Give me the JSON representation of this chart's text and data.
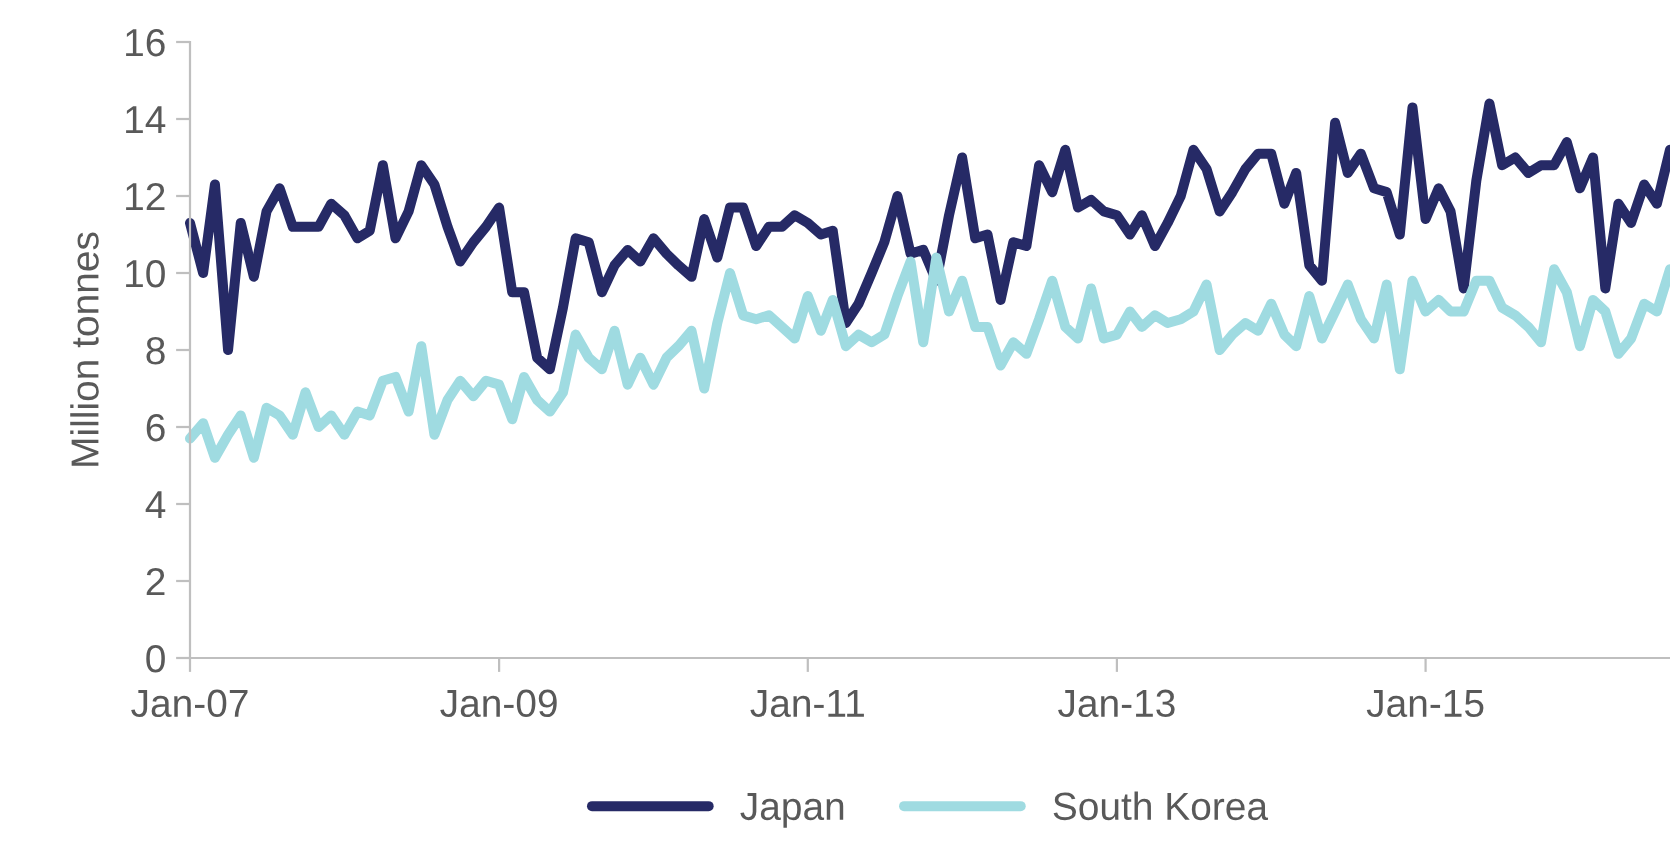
{
  "chart_data": {
    "type": "line",
    "ylabel": "Million tonnes",
    "x": [
      "2007-01",
      "2007-02",
      "2007-03",
      "2007-04",
      "2007-05",
      "2007-06",
      "2007-07",
      "2007-08",
      "2007-09",
      "2007-10",
      "2007-11",
      "2007-12",
      "2008-01",
      "2008-02",
      "2008-03",
      "2008-04",
      "2008-05",
      "2008-06",
      "2008-07",
      "2008-08",
      "2008-09",
      "2008-10",
      "2008-11",
      "2008-12",
      "2009-01",
      "2009-02",
      "2009-03",
      "2009-04",
      "2009-05",
      "2009-06",
      "2009-07",
      "2009-08",
      "2009-09",
      "2009-10",
      "2009-11",
      "2009-12",
      "2010-01",
      "2010-02",
      "2010-03",
      "2010-04",
      "2010-05",
      "2010-06",
      "2010-07",
      "2010-08",
      "2010-09",
      "2010-10",
      "2010-11",
      "2010-12",
      "2011-01",
      "2011-02",
      "2011-03",
      "2011-04",
      "2011-05",
      "2011-06",
      "2011-07",
      "2011-08",
      "2011-09",
      "2011-10",
      "2011-11",
      "2011-12",
      "2012-01",
      "2012-02",
      "2012-03",
      "2012-04",
      "2012-05",
      "2012-06",
      "2012-07",
      "2012-08",
      "2012-09",
      "2012-10",
      "2012-11",
      "2012-12",
      "2013-01",
      "2013-02",
      "2013-03",
      "2013-04",
      "2013-05",
      "2013-06",
      "2013-07",
      "2013-08",
      "2013-09",
      "2013-10",
      "2013-11",
      "2013-12",
      "2014-01",
      "2014-02",
      "2014-03",
      "2014-04",
      "2014-05",
      "2014-06",
      "2014-07",
      "2014-08",
      "2014-09",
      "2014-10",
      "2014-11",
      "2014-12",
      "2015-01",
      "2015-02",
      "2015-03",
      "2015-04",
      "2015-05",
      "2015-06",
      "2015-07",
      "2015-08",
      "2015-09",
      "2015-10",
      "2015-11",
      "2015-12",
      "2016-01",
      "2016-02",
      "2016-03",
      "2016-04",
      "2016-05",
      "2016-06",
      "2016-07",
      "2016-08"
    ],
    "series": [
      {
        "name": "Japan",
        "color": "#262a66",
        "values": [
          11.3,
          10.0,
          12.3,
          8.0,
          11.3,
          9.9,
          11.6,
          12.2,
          11.2,
          11.2,
          11.2,
          11.8,
          11.5,
          10.9,
          11.1,
          12.8,
          10.9,
          11.6,
          12.8,
          12.3,
          11.2,
          10.3,
          10.8,
          11.2,
          11.7,
          9.5,
          9.5,
          7.8,
          7.5,
          9.1,
          10.9,
          10.8,
          9.5,
          10.2,
          10.6,
          10.3,
          10.9,
          10.5,
          10.2,
          9.9,
          11.4,
          10.4,
          11.7,
          11.7,
          10.7,
          11.2,
          11.2,
          11.5,
          11.3,
          11.0,
          11.1,
          8.7,
          9.2,
          10.0,
          10.8,
          12.0,
          10.5,
          10.6,
          9.8,
          11.5,
          13.0,
          10.9,
          11.0,
          9.3,
          10.8,
          10.7,
          12.8,
          12.1,
          13.2,
          11.7,
          11.9,
          11.6,
          11.5,
          11.0,
          11.5,
          10.7,
          11.3,
          12.0,
          13.2,
          12.7,
          11.6,
          12.1,
          12.7,
          13.1,
          13.1,
          11.8,
          12.6,
          10.2,
          9.8,
          13.9,
          12.6,
          13.1,
          12.2,
          12.1,
          11.0,
          14.3,
          11.4,
          12.2,
          11.6,
          9.6,
          12.4,
          14.4,
          12.8,
          13.0,
          12.6,
          12.8,
          12.8,
          13.4,
          12.2,
          13.0,
          9.6,
          11.8,
          11.3,
          12.3,
          11.8,
          13.2
        ]
      },
      {
        "name": "South Korea",
        "color": "#9fdbe1",
        "values": [
          5.7,
          6.1,
          5.2,
          5.8,
          6.3,
          5.2,
          6.5,
          6.3,
          5.8,
          6.9,
          6.0,
          6.3,
          5.8,
          6.4,
          6.3,
          7.2,
          7.3,
          6.4,
          8.1,
          5.8,
          6.7,
          7.2,
          6.8,
          7.2,
          7.1,
          6.2,
          7.3,
          6.7,
          6.4,
          6.9,
          8.4,
          7.8,
          7.5,
          8.5,
          7.1,
          7.8,
          7.1,
          7.8,
          8.1,
          8.5,
          7.0,
          8.7,
          10.0,
          8.9,
          8.8,
          8.9,
          8.6,
          8.3,
          9.4,
          8.5,
          9.3,
          8.1,
          8.4,
          8.2,
          8.4,
          9.4,
          10.3,
          8.2,
          10.4,
          9.0,
          9.8,
          8.6,
          8.6,
          7.6,
          8.2,
          7.9,
          8.8,
          9.8,
          8.6,
          8.3,
          9.6,
          8.3,
          8.4,
          9.0,
          8.6,
          8.9,
          8.7,
          8.8,
          9.0,
          9.7,
          8.0,
          8.4,
          8.7,
          8.5,
          9.2,
          8.4,
          8.1,
          9.4,
          8.3,
          9.0,
          9.7,
          8.8,
          8.3,
          9.7,
          7.5,
          9.8,
          9.0,
          9.3,
          9.0,
          9.0,
          9.8,
          9.8,
          9.1,
          8.9,
          8.6,
          8.2,
          10.1,
          9.5,
          8.1,
          9.3,
          9.0,
          7.9,
          8.3,
          9.2,
          9.0,
          10.1
        ]
      }
    ],
    "xlim": [
      "2007-01",
      "2016-08"
    ],
    "xticks": [
      {
        "value": "2007-01",
        "label": "Jan-07"
      },
      {
        "value": "2009-01",
        "label": "Jan-09"
      },
      {
        "value": "2011-01",
        "label": "Jan-11"
      },
      {
        "value": "2013-01",
        "label": "Jan-13"
      },
      {
        "value": "2015-01",
        "label": "Jan-15"
      }
    ],
    "ylim": [
      0,
      16
    ],
    "yticks": [
      0,
      2,
      4,
      6,
      8,
      10,
      12,
      14,
      16
    ],
    "grid": false,
    "legend": "bottom",
    "marker": "none",
    "line_style": "solid"
  }
}
